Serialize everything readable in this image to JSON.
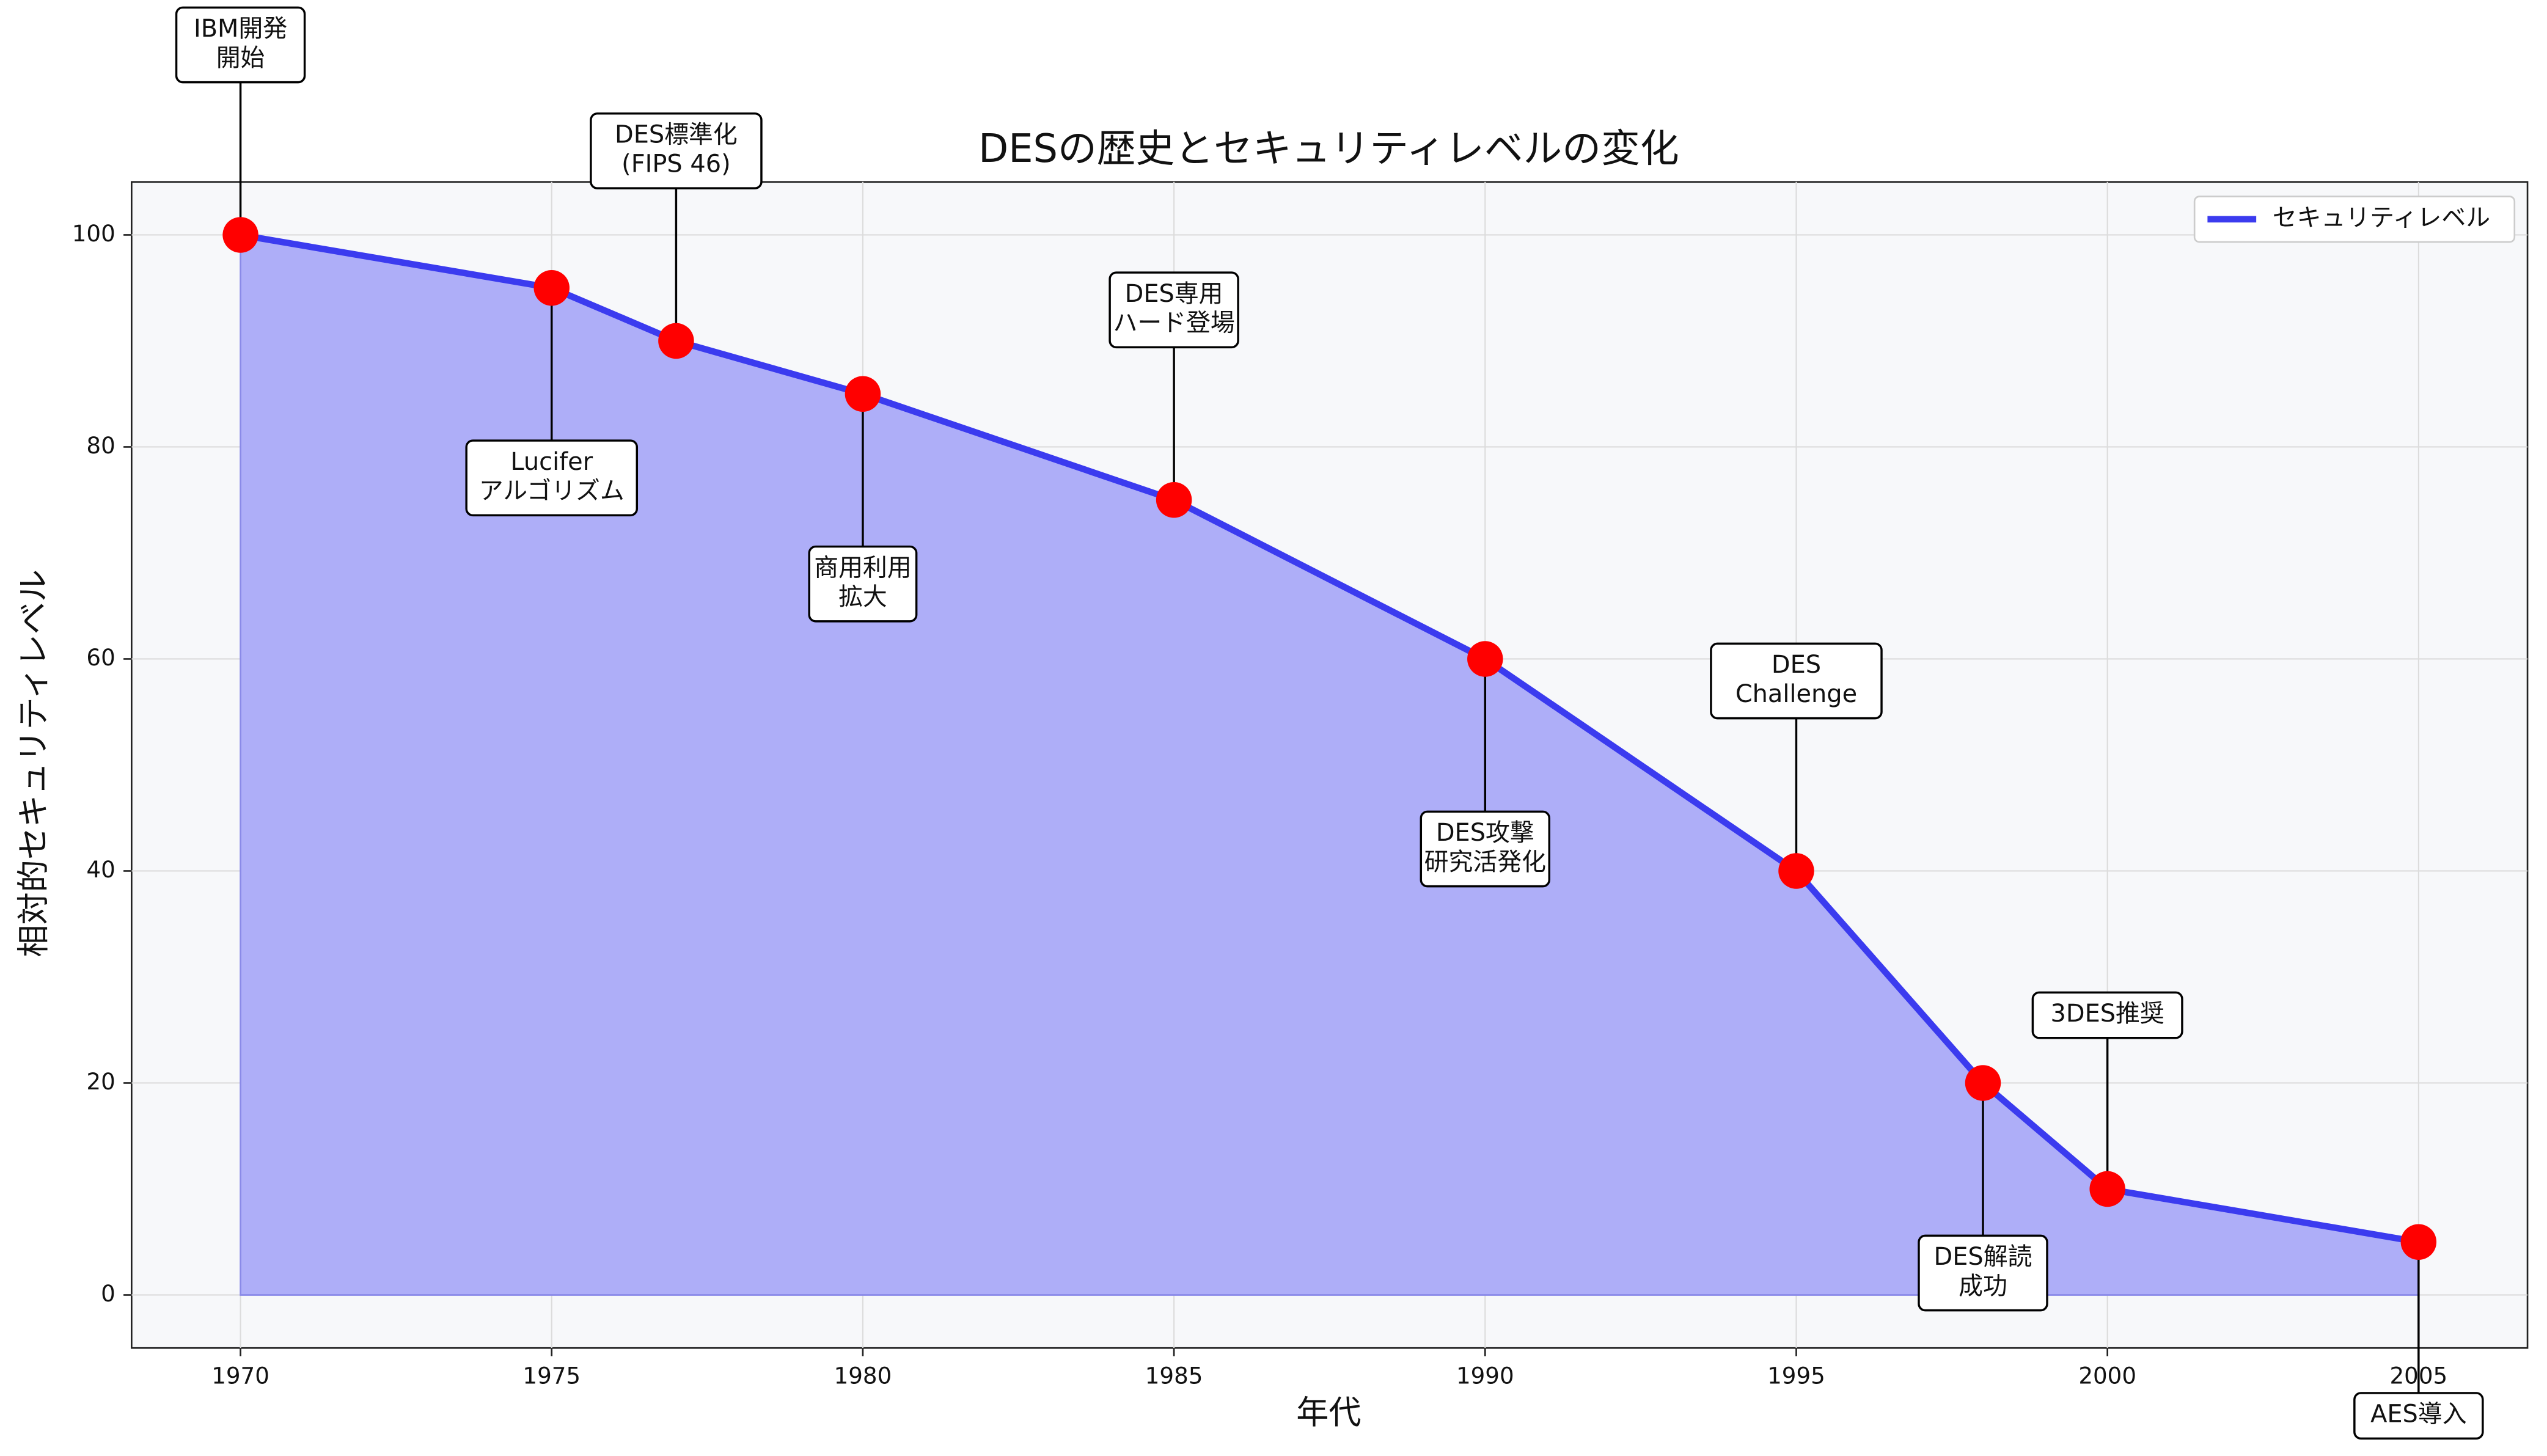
{
  "chart_data": {
    "type": "line",
    "title": "DESの歴史とセキュリティレベルの変化",
    "x_label": "年代",
    "y_label": "相対的セキュリティレベル",
    "x": [
      1970,
      1975,
      1977,
      1980,
      1985,
      1990,
      1995,
      1998,
      2000,
      2005
    ],
    "series": [
      {
        "name": "セキュリティレベル",
        "color": "#3b3bef",
        "fill": "#aeaef8",
        "marker_color": "#ff0000",
        "values": [
          100,
          95,
          90,
          85,
          75,
          60,
          40,
          20,
          10,
          5
        ]
      }
    ],
    "annotations": [
      {
        "text": [
          "IBM開発",
          "開始"
        ],
        "point": 0
      },
      {
        "text": [
          "Lucifer",
          "アルゴリズム"
        ],
        "point": 1
      },
      {
        "text": [
          "DES標準化",
          "(FIPS 46)"
        ],
        "point": 2
      },
      {
        "text": [
          "商用利用",
          "拡大"
        ],
        "point": 3
      },
      {
        "text": [
          "DES専用",
          "ハード登場"
        ],
        "point": 4
      },
      {
        "text": [
          "DES攻撃",
          "研究活発化"
        ],
        "point": 5
      },
      {
        "text": [
          "DES",
          "Challenge"
        ],
        "point": 6
      },
      {
        "text": [
          "DES解読",
          "成功"
        ],
        "point": 7
      },
      {
        "text": [
          "3DES推奨"
        ],
        "point": 8
      },
      {
        "text": [
          "AES導入"
        ],
        "point": 9
      }
    ],
    "xlim": [
      1968.25,
      2006.75
    ],
    "ylim": [
      -5,
      105
    ],
    "xticks": [
      1970,
      1975,
      1980,
      1985,
      1990,
      1995,
      2000,
      2005
    ],
    "yticks": [
      0,
      20,
      40,
      60,
      80,
      100
    ],
    "grid": true,
    "legend": "upper right"
  }
}
